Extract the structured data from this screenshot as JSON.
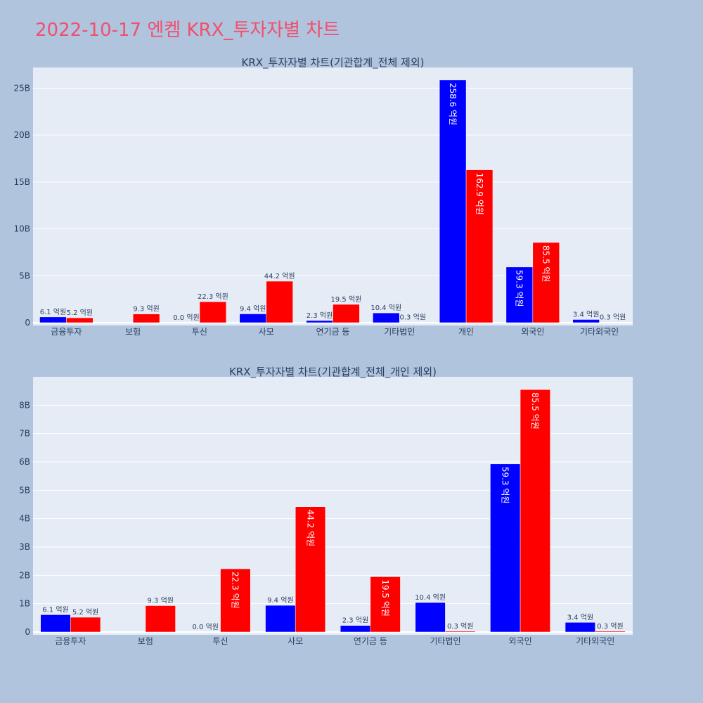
{
  "page_title": "2022-10-17 엔켐 KRX_투자자별 차트",
  "colors": {
    "buy": "#0000ff",
    "sell": "#ff0000",
    "plot_bg": "#e5ecf6",
    "page_bg": "#b0c4de",
    "title": "#f0506e"
  },
  "chart_data": [
    {
      "type": "bar",
      "title": "KRX_투자자별 차트(기관합계_전체 제외)",
      "categories": [
        "금융투자",
        "보험",
        "투신",
        "사모",
        "연기금 등",
        "기타법인",
        "개인",
        "외국인",
        "기타외국인"
      ],
      "series": [
        {
          "values": [
            0.61,
            0,
            0.0,
            0.94,
            0.23,
            1.04,
            25.86,
            5.93,
            0.34
          ],
          "labels": [
            "6.1 억원",
            "",
            "0.0 억원",
            "9.4 억원",
            "2.3 억원",
            "10.4 억원",
            "258.6 억원",
            "59.3 억원",
            "3.4 억원"
          ]
        },
        {
          "values": [
            0.52,
            0.93,
            2.23,
            4.42,
            1.95,
            0.03,
            16.29,
            8.55,
            0.03
          ],
          "labels": [
            "5.2 억원",
            "9.3 억원",
            "22.3 억원",
            "44.2 억원",
            "19.5 억원",
            "0.3 억원",
            "162.9 억원",
            "85.5 억원",
            "0.3 억원"
          ]
        }
      ],
      "yticks": [
        "0",
        "5B",
        "10B",
        "15B",
        "20B",
        "25B"
      ],
      "ytick_values": [
        0,
        5,
        10,
        15,
        20,
        25
      ],
      "ylim": [
        0,
        27.2
      ],
      "grid": true
    },
    {
      "type": "bar",
      "title": "KRX_투자자별 차트(기관합계_전체_개인 제외)",
      "categories": [
        "금융투자",
        "보험",
        "투신",
        "사모",
        "연기금 등",
        "기타법인",
        "외국인",
        "기타외국인"
      ],
      "series": [
        {
          "values": [
            0.61,
            0,
            0.0,
            0.94,
            0.23,
            1.04,
            5.93,
            0.34
          ],
          "labels": [
            "6.1 억원",
            "",
            "0.0 억원",
            "9.4 억원",
            "2.3 억원",
            "10.4 억원",
            "59.3 억원",
            "3.4 억원"
          ]
        },
        {
          "values": [
            0.52,
            0.93,
            2.23,
            4.42,
            1.95,
            0.03,
            8.55,
            0.03
          ],
          "labels": [
            "5.2 억원",
            "9.3 억원",
            "22.3 억원",
            "44.2 억원",
            "19.5 억원",
            "0.3 억원",
            "85.5 억원",
            "0.3 억원"
          ]
        }
      ],
      "yticks": [
        "0",
        "1B",
        "2B",
        "3B",
        "4B",
        "5B",
        "6B",
        "7B",
        "8B"
      ],
      "ytick_values": [
        0,
        1,
        2,
        3,
        4,
        5,
        6,
        7,
        8
      ],
      "ylim": [
        0,
        9.0
      ],
      "grid": true
    }
  ]
}
